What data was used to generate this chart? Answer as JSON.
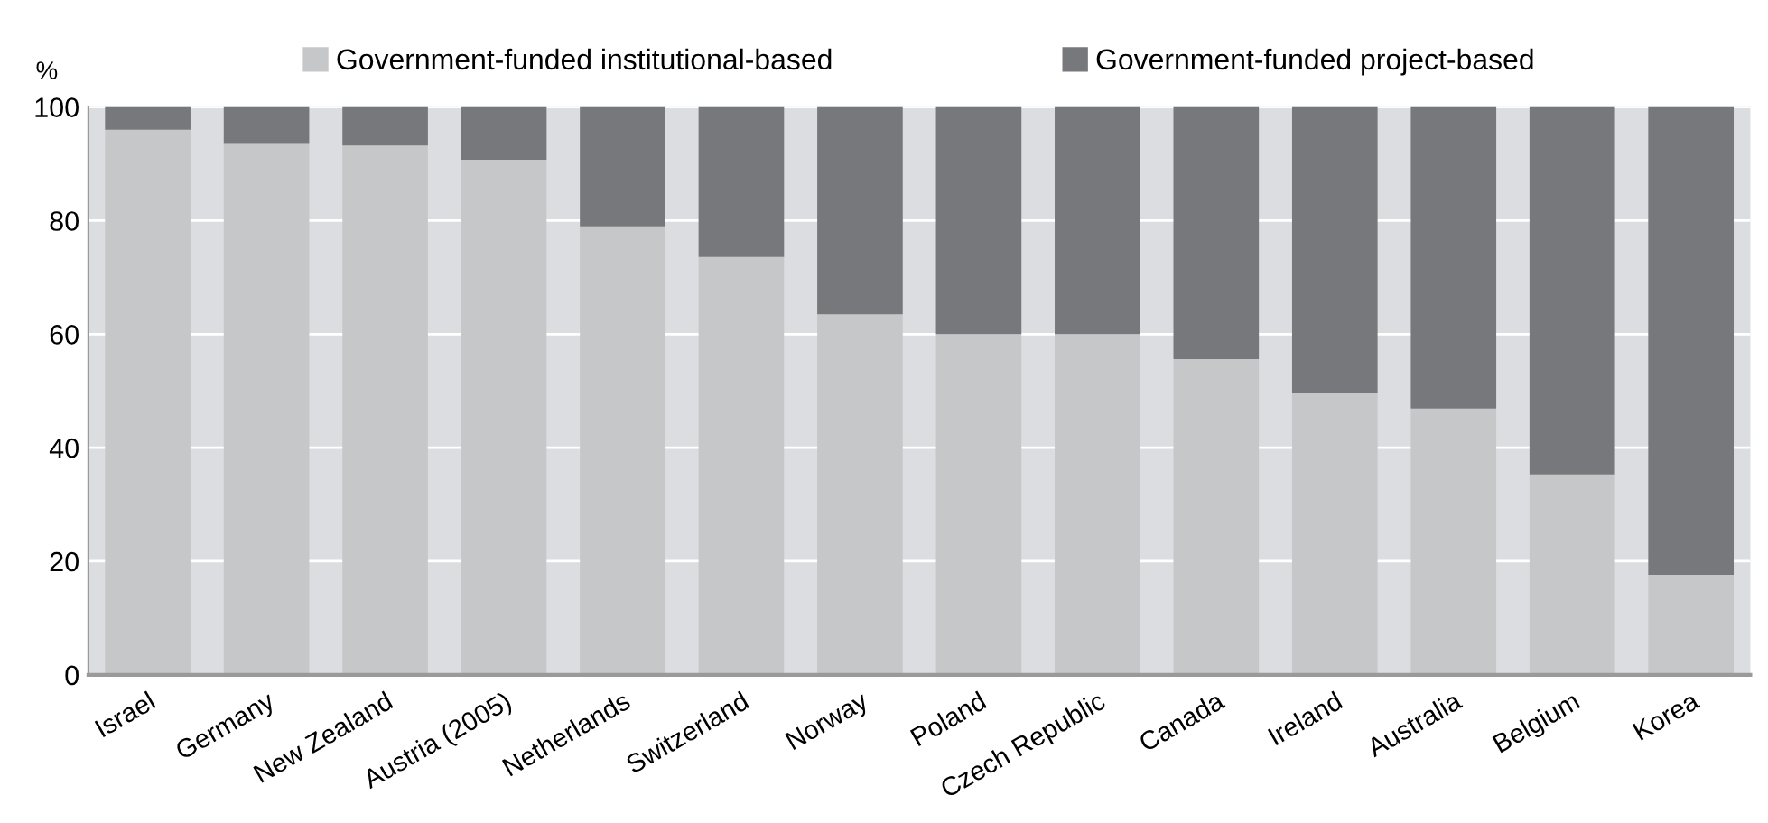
{
  "chart_data": {
    "type": "bar",
    "stacked": true,
    "ylabel": "%",
    "categories": [
      "Israel",
      "Germany",
      "New Zealand",
      "Austria (2005)",
      "Netherlands",
      "Switzerland",
      "Norway",
      "Poland",
      "Czech Republic",
      "Canada",
      "Ireland",
      "Australia",
      "Belgium",
      "Korea"
    ],
    "series": [
      {
        "name": "Government-funded institutional-based",
        "color": "#c6c7c9",
        "values": [
          96,
          93.5,
          93.2,
          90.7,
          79,
          73.6,
          63.5,
          60,
          60,
          55.6,
          49.7,
          46.9,
          35.3,
          17.6
        ]
      },
      {
        "name": "Government-funded project-based",
        "color": "#77787b",
        "values": [
          4,
          6.5,
          6.8,
          9.3,
          21,
          26.4,
          36.5,
          40,
          40,
          44.4,
          50.3,
          53.1,
          64.7,
          82.4
        ]
      }
    ],
    "ylim": [
      0,
      100
    ],
    "yticks": [
      0,
      20,
      40,
      60,
      80,
      100
    ],
    "grid": "y",
    "legend": "top"
  }
}
